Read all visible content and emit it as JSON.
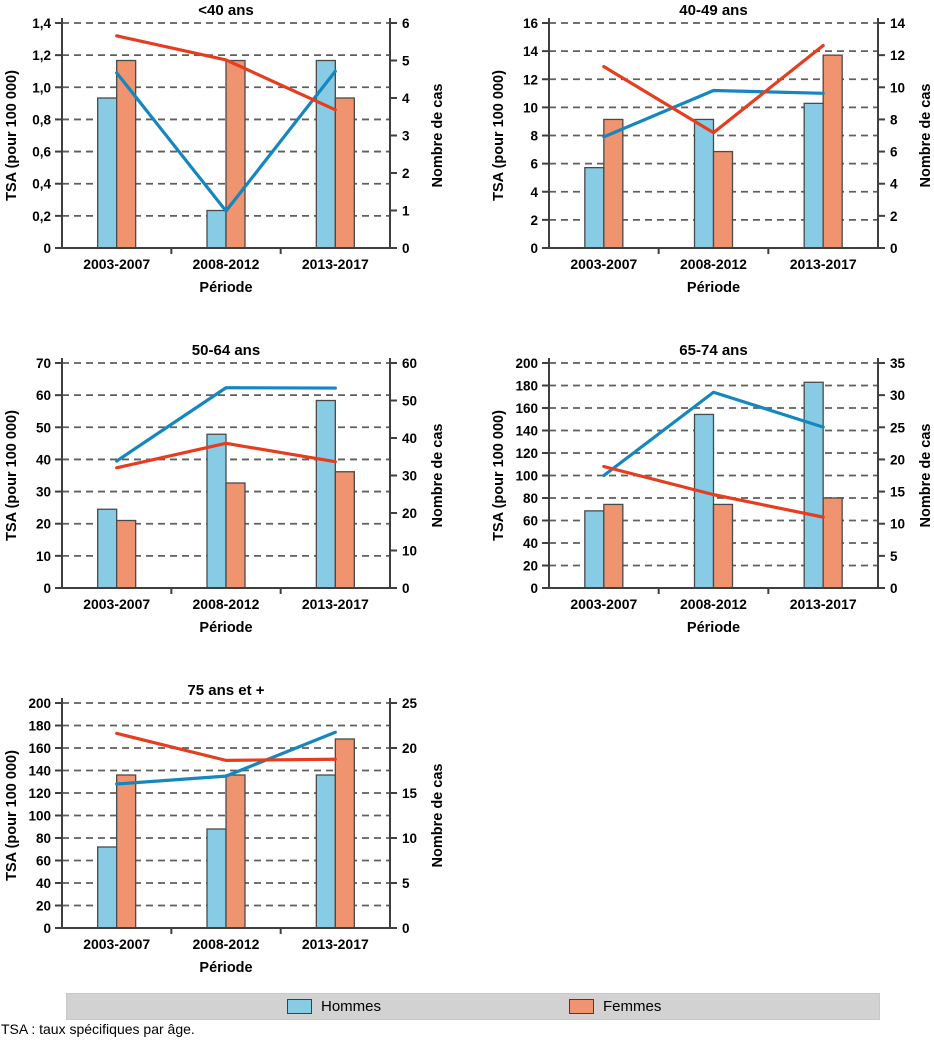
{
  "figure": {
    "footnote": "TSA : taux spécifiques par âge.",
    "legend": {
      "items": [
        {
          "label": "Hommes",
          "color": "#87CBE4"
        },
        {
          "label": "Femmes",
          "color": "#F0936F"
        }
      ]
    },
    "colors": {
      "bar_hommes": "#87CBE4",
      "bar_femmes": "#F0936F",
      "line_hommes": "#1587BE",
      "line_femmes": "#E73C1E",
      "bar_border": "#4A4A4A",
      "axis": "#3F3F3F",
      "grid": "#5F5F5F",
      "legend_bg": "#D2D2D2"
    }
  },
  "chart_data": [
    {
      "type": "bar+line",
      "title": "<40 ans",
      "categories": [
        "2003-2007",
        "2008-2012",
        "2013-2017"
      ],
      "xlabel": "Période",
      "axes": {
        "left": {
          "label": "TSA (pour 100 000)",
          "min": 0,
          "max": 1.4,
          "step": 0.2,
          "decimals": 1
        },
        "right": {
          "label": "Nombre de cas",
          "min": 0,
          "max": 6,
          "step": 1,
          "decimals": 0
        }
      },
      "grid": "dashed-horizontal",
      "series": [
        {
          "name": "Hommes",
          "type": "bar",
          "axis": "right",
          "values": [
            4,
            1,
            5
          ]
        },
        {
          "name": "Femmes",
          "type": "bar",
          "axis": "right",
          "values": [
            5,
            5,
            4
          ]
        },
        {
          "name": "Hommes",
          "type": "line",
          "axis": "left",
          "values": [
            1.09,
            0.23,
            1.1
          ]
        },
        {
          "name": "Femmes",
          "type": "line",
          "axis": "left",
          "values": [
            1.32,
            1.17,
            0.86
          ]
        }
      ]
    },
    {
      "type": "bar+line",
      "title": "40-49 ans",
      "categories": [
        "2003-2007",
        "2008-2012",
        "2013-2017"
      ],
      "xlabel": "Période",
      "axes": {
        "left": {
          "label": "TSA (pour 100 000)",
          "min": 0,
          "max": 16,
          "step": 2,
          "decimals": 0
        },
        "right": {
          "label": "Nombre de cas",
          "min": 0,
          "max": 14,
          "step": 2,
          "decimals": 0
        }
      },
      "grid": "dashed-horizontal",
      "series": [
        {
          "name": "Hommes",
          "type": "bar",
          "axis": "right",
          "values": [
            5,
            8,
            9
          ]
        },
        {
          "name": "Femmes",
          "type": "bar",
          "axis": "right",
          "values": [
            8,
            6,
            12
          ]
        },
        {
          "name": "Hommes",
          "type": "line",
          "axis": "left",
          "values": [
            7.9,
            11.2,
            11.0
          ]
        },
        {
          "name": "Femmes",
          "type": "line",
          "axis": "left",
          "values": [
            12.9,
            8.2,
            14.4
          ]
        }
      ]
    },
    {
      "type": "bar+line",
      "title": "50-64 ans",
      "categories": [
        "2003-2007",
        "2008-2012",
        "2013-2017"
      ],
      "xlabel": "Période",
      "axes": {
        "left": {
          "label": "TSA (pour 100 000)",
          "min": 0,
          "max": 70,
          "step": 10,
          "decimals": 0
        },
        "right": {
          "label": "Nombre de cas",
          "min": 0,
          "max": 60,
          "step": 10,
          "decimals": 0
        }
      },
      "grid": "dashed-horizontal",
      "series": [
        {
          "name": "Hommes",
          "type": "bar",
          "axis": "right",
          "values": [
            21,
            41,
            50
          ]
        },
        {
          "name": "Femmes",
          "type": "bar",
          "axis": "right",
          "values": [
            18,
            28,
            31
          ]
        },
        {
          "name": "Hommes",
          "type": "line",
          "axis": "left",
          "values": [
            39.5,
            62.3,
            62.2
          ]
        },
        {
          "name": "Femmes",
          "type": "line",
          "axis": "left",
          "values": [
            37.4,
            45.0,
            39.3
          ]
        }
      ]
    },
    {
      "type": "bar+line",
      "title": "65-74 ans",
      "categories": [
        "2003-2007",
        "2008-2012",
        "2013-2017"
      ],
      "xlabel": "Période",
      "axes": {
        "left": {
          "label": "TSA (pour 100 000)",
          "min": 0,
          "max": 200,
          "step": 20,
          "decimals": 0
        },
        "right": {
          "label": "Nombre de cas",
          "min": 0,
          "max": 35,
          "step": 5,
          "decimals": 0
        }
      },
      "grid": "dashed-horizontal",
      "series": [
        {
          "name": "Hommes",
          "type": "bar",
          "axis": "right",
          "values": [
            12,
            27,
            32
          ]
        },
        {
          "name": "Femmes",
          "type": "bar",
          "axis": "right",
          "values": [
            13,
            13,
            14
          ]
        },
        {
          "name": "Hommes",
          "type": "line",
          "axis": "left",
          "values": [
            100,
            174,
            143
          ]
        },
        {
          "name": "Femmes",
          "type": "line",
          "axis": "left",
          "values": [
            108,
            83,
            63
          ]
        }
      ]
    },
    {
      "type": "bar+line",
      "title": "75 ans et +",
      "categories": [
        "2003-2007",
        "2008-2012",
        "2013-2017"
      ],
      "xlabel": "Période",
      "axes": {
        "left": {
          "label": "TSA (pour 100 000)",
          "min": 0,
          "max": 200,
          "step": 20,
          "decimals": 0
        },
        "right": {
          "label": "Nombre de cas",
          "min": 0,
          "max": 25,
          "step": 5,
          "decimals": 0
        }
      },
      "grid": "dashed-horizontal",
      "series": [
        {
          "name": "Hommes",
          "type": "bar",
          "axis": "right",
          "values": [
            9,
            11,
            17
          ]
        },
        {
          "name": "Femmes",
          "type": "bar",
          "axis": "right",
          "values": [
            17,
            17,
            21
          ]
        },
        {
          "name": "Hommes",
          "type": "line",
          "axis": "left",
          "values": [
            128,
            135,
            174
          ]
        },
        {
          "name": "Femmes",
          "type": "line",
          "axis": "left",
          "values": [
            173,
            149,
            150
          ]
        }
      ]
    }
  ]
}
